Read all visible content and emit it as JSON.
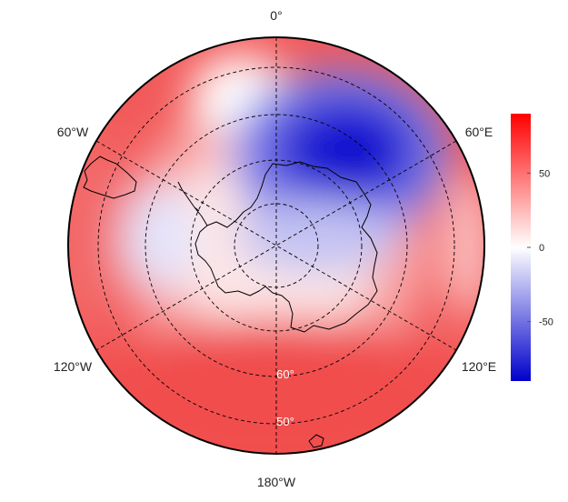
{
  "map": {
    "projection": "south-polar-stereographic",
    "longitude_labels": {
      "top": "0°",
      "upper_right": "60°E",
      "lower_right": "120°E",
      "bottom": "180°W",
      "lower_left": "120°W",
      "upper_left": "60°W"
    },
    "latitude_labels": {
      "inner": "60°",
      "outer": "50°"
    },
    "colors": {
      "negative": "#0000cc",
      "neutral": "#ffffff",
      "positive": "#ff0000",
      "coastline": "#000000",
      "grid": "#000000"
    }
  },
  "colorbar": {
    "ticks": [
      {
        "value": 50,
        "label": "50"
      },
      {
        "value": 0,
        "label": "0"
      },
      {
        "value": -50,
        "label": "-50"
      }
    ],
    "range": [
      -90,
      90
    ]
  }
}
